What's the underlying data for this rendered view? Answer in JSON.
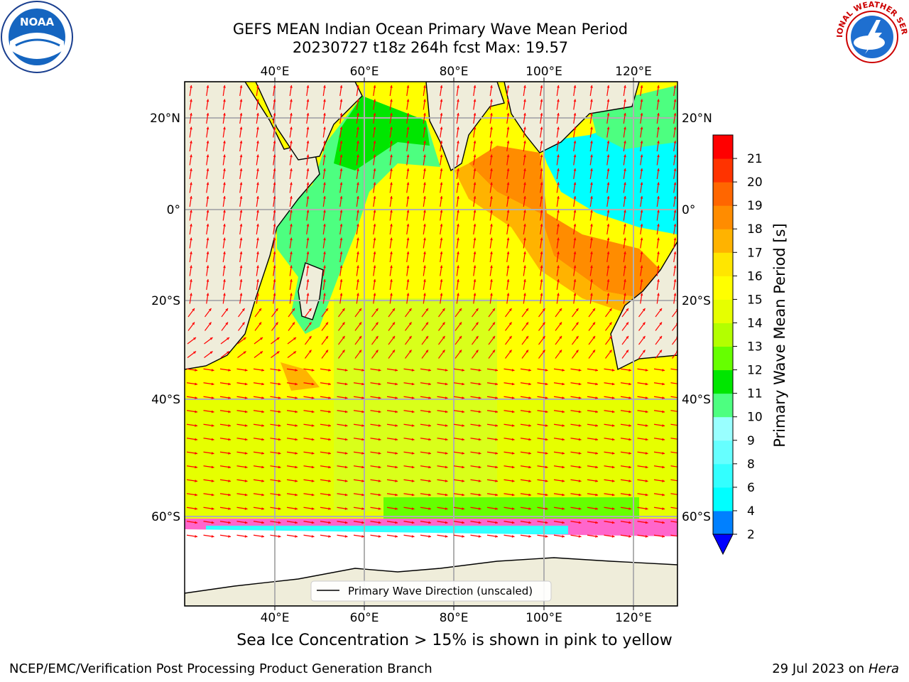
{
  "title_line1": "GEFS MEAN Indian Ocean Primary Wave Mean Period",
  "title_line2": "20230727 t18z 264h fcst   Max: 19.57",
  "logos": {
    "left": "noaa-logo",
    "left_text": "NOAA",
    "right": "national-weather-service-logo",
    "right_text": "NATIONAL WEATHER SERVICE"
  },
  "map": {
    "lon_ticks": [
      "40°E",
      "60°E",
      "80°E",
      "100°E",
      "120°E"
    ],
    "lat_ticks_left": [
      "20°N",
      "0°",
      "20°S",
      "40°S",
      "60°S"
    ],
    "lat_ticks_right": [
      "20°N",
      "0°",
      "20°S",
      "40°S",
      "60°S"
    ],
    "legend": "Primary Wave Direction (unscaled)",
    "land_color": "#efedda",
    "arrow_color": "#ff0000"
  },
  "colorbar": {
    "label": "Primary Wave Mean Period [s]",
    "ticks": [
      "2",
      "4",
      "6",
      "8",
      "9",
      "10",
      "11",
      "12",
      "13",
      "14",
      "15",
      "16",
      "17",
      "18",
      "19",
      "20",
      "21"
    ],
    "colors": [
      "#0080ff",
      "#00ffff",
      "#33ffff",
      "#66ffff",
      "#99ffff",
      "#4dff80",
      "#00e600",
      "#66ff00",
      "#b3ff00",
      "#e6ff00",
      "#ffff00",
      "#ffe600",
      "#ffb300",
      "#ff8c00",
      "#ff6600",
      "#ff3300",
      "#ff0000"
    ],
    "extend": "min"
  },
  "caption": "Sea Ice Concentration > 15% is shown in pink to yellow",
  "footer_left": "NCEP/EMC/Verification Post Processing Product Generation Branch",
  "footer_right_prefix": "29 Jul 2023 on ",
  "footer_right_host": "Hera"
}
